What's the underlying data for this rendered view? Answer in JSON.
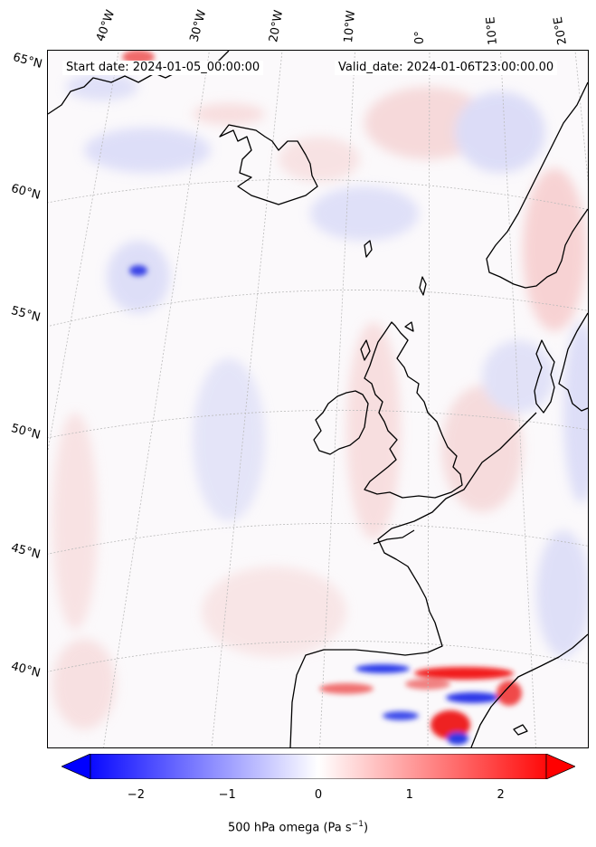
{
  "header": {
    "start_date": "Start date: 2024-01-05_00:00:00",
    "valid_date": "Valid_date: 2024-01-06T23:00:00.00"
  },
  "longitude_labels": [
    "40°W",
    "30°W",
    "20°W",
    "10°W",
    "0°",
    "10°E",
    "20°E"
  ],
  "latitude_labels": [
    "65°N",
    "60°N",
    "55°N",
    "50°N",
    "45°N",
    "40°N"
  ],
  "colorbar": {
    "label": "500 hPa omega (Pa s",
    "label_exp": "−1",
    "label_close": ")",
    "ticks": [
      "−2",
      "−1",
      "0",
      "1",
      "2"
    ],
    "tick_values": [
      -2,
      -1,
      0,
      1,
      2
    ],
    "range": [
      -2.5,
      2.5
    ],
    "colormap": "bwr",
    "extend": "both",
    "low_color": "#0000ff",
    "mid_color": "#ffffff",
    "high_color": "#ff0000"
  },
  "map": {
    "field": "500 hPa omega",
    "projection": "conic",
    "coastline_color": "#000000",
    "gridline_color": "#bbbbbb"
  }
}
